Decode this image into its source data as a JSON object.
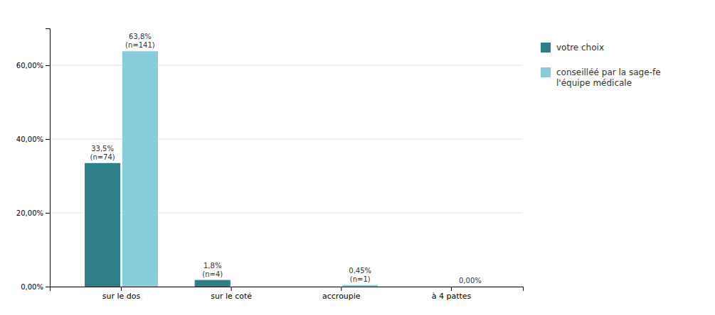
{
  "chart_data": {
    "type": "bar",
    "categories": [
      "sur le dos",
      "sur le coté",
      "accroupie",
      "à 4 pattes"
    ],
    "series": [
      {
        "name": "votre choix",
        "color": "#2e7f8a",
        "values": [
          33.5,
          1.8,
          0.0,
          0.0
        ],
        "value_labels": [
          "33,5%\n(n=74)",
          "1,8%\n(n=4)",
          null,
          null
        ]
      },
      {
        "name": "conseilléé par la sage-fe\nl'équipe médicale",
        "color": "#87cedc",
        "values": [
          63.8,
          0.0,
          0.45,
          0.0
        ],
        "value_labels": [
          "63,8%\n(n=141)",
          null,
          "0,45%\n(n=1)",
          "0,00%"
        ]
      }
    ],
    "ylim": [
      0,
      70
    ],
    "yticks": [
      {
        "value": 0,
        "label": "0,00%"
      },
      {
        "value": 20,
        "label": "20,00%"
      },
      {
        "value": 40,
        "label": "40,00%"
      },
      {
        "value": 60,
        "label": "60,00%"
      }
    ],
    "grid": true,
    "legend": "right",
    "data_labels": true
  }
}
